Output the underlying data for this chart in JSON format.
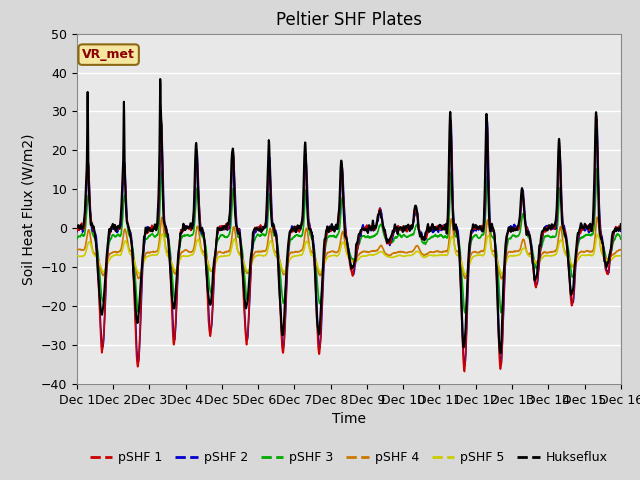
{
  "title": "Peltier SHF Plates",
  "xlabel": "Time",
  "ylabel": "Soil Heat Flux (W/m2)",
  "ylim": [
    -40,
    50
  ],
  "xlim": [
    0,
    15
  ],
  "xtick_labels": [
    "Dec 1",
    "Dec 2",
    "Dec 3",
    "Dec 4",
    "Dec 5",
    "Dec 6",
    "Dec 7",
    "Dec 8",
    "Dec 9",
    "Dec 10",
    "Dec 11",
    "Dec 12",
    "Dec 13",
    "Dec 14",
    "Dec 15",
    "Dec 16"
  ],
  "series_colors": {
    "pSHF 1": "#cc0000",
    "pSHF 2": "#0000cc",
    "pSHF 3": "#00aa00",
    "pSHF 4": "#cc7700",
    "pSHF 5": "#cccc00",
    "Hukseflux": "#000000"
  },
  "series_linewidths": {
    "pSHF 1": 1.2,
    "pSHF 2": 1.2,
    "pSHF 3": 1.2,
    "pSHF 4": 1.2,
    "pSHF 5": 1.2,
    "Hukseflux": 1.5
  },
  "annotation_text": "VR_met",
  "bg_color": "#d8d8d8",
  "plot_bg_color": "#e8e8e8",
  "n_points": 2160,
  "days": 15
}
